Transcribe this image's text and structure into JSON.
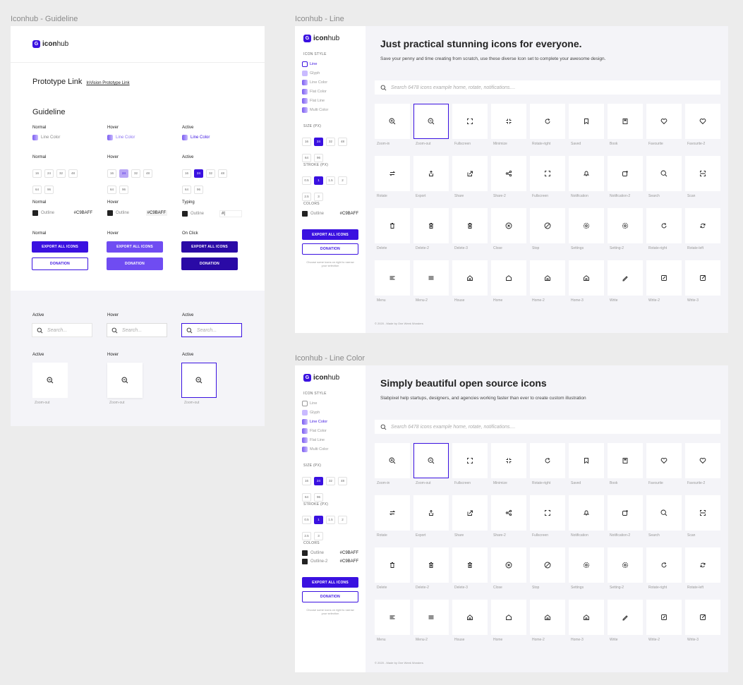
{
  "titles": {
    "guideline": "Iconhub - Guideline",
    "line": "Iconhub - Line",
    "line_color": "Iconhub - Line Color"
  },
  "logo": {
    "bold": "icon",
    "rest": "hub",
    "mark": "G"
  },
  "guideline": {
    "prototype_title": "Prototype Link",
    "prototype_link": "InVision Prototype Link",
    "section_title": "Guideline",
    "states": {
      "normal": "Normal",
      "hover": "Hover",
      "active": "Active",
      "typing": "Typing",
      "on_click": "On Click"
    },
    "line_color": "Line Color",
    "outline": "Outline",
    "hex": "#C9BAFF",
    "typing_value": "#|",
    "sizes": [
      "16",
      "24",
      "32",
      "48",
      "64",
      "96"
    ],
    "export": "EXPORT ALL ICONS",
    "donation": "DONATION",
    "search_placeholder": "Search...",
    "zoom_out": "Zoom-out"
  },
  "sidebar": {
    "icon_style": "ICON STYLE",
    "styles": [
      "Line",
      "Glyph",
      "Line Color",
      "Flat Color",
      "Flat Line",
      "Multi Color"
    ],
    "size": "SIZE (PX)",
    "sizes": [
      "16",
      "24",
      "32",
      "48",
      "64",
      "96"
    ],
    "stroke": "STROKE (PX)",
    "strokes": [
      "0.5",
      "1",
      "1.5",
      "2",
      "2.5",
      "3"
    ],
    "colors": "COLORS",
    "outline": "Outline",
    "outline2": "Outline-2",
    "hex": "#C9BAFF",
    "export": "EXPORT ALL ICONS",
    "donation": "DONATION",
    "hint": "Choose some icons on right to narrow your selection"
  },
  "line_page": {
    "hero": "Just practical stunning icons for everyone.",
    "sub": "Save your penny and time creating from scratch, use these diverse Icon set to complete your awesome design.",
    "search": "Search 6478 icons example home, rotate, notifications....",
    "footer": "© 2020 - Made by One Week Wonders"
  },
  "color_page": {
    "hero": "Simply beautiful open source icons",
    "sub": "Slabpixel help startups, designers, and agencies working faster than ever to create custom illustration",
    "search": "Search 6478 icons example home, rotate, notifications....",
    "footer": "© 2020 - Made by One Week Wonders"
  },
  "icons": [
    [
      "Zoom-in",
      "Zoom-out",
      "Fullscreen",
      "Minimize",
      "Rotate-right",
      "Saved",
      "Book",
      "Favourite",
      "Favourite-2"
    ],
    [
      "Rotate",
      "Export",
      "Share",
      "Share-2",
      "Fullscreen",
      "Notification",
      "Notification-2",
      "Search",
      "Scan"
    ],
    [
      "Delete",
      "Delete-2",
      "Delete-3",
      "Close",
      "Stop",
      "Settings",
      "Setting-2",
      "Rotate-right",
      "Rotate-left"
    ],
    [
      "Menu",
      "Menu-2",
      "House",
      "Home",
      "Home-2",
      "Home-3",
      "Write",
      "Write-2",
      "Write-3"
    ]
  ],
  "colors": {
    "accent": "#3A11E0",
    "light_accent": "#C9BAFF"
  }
}
